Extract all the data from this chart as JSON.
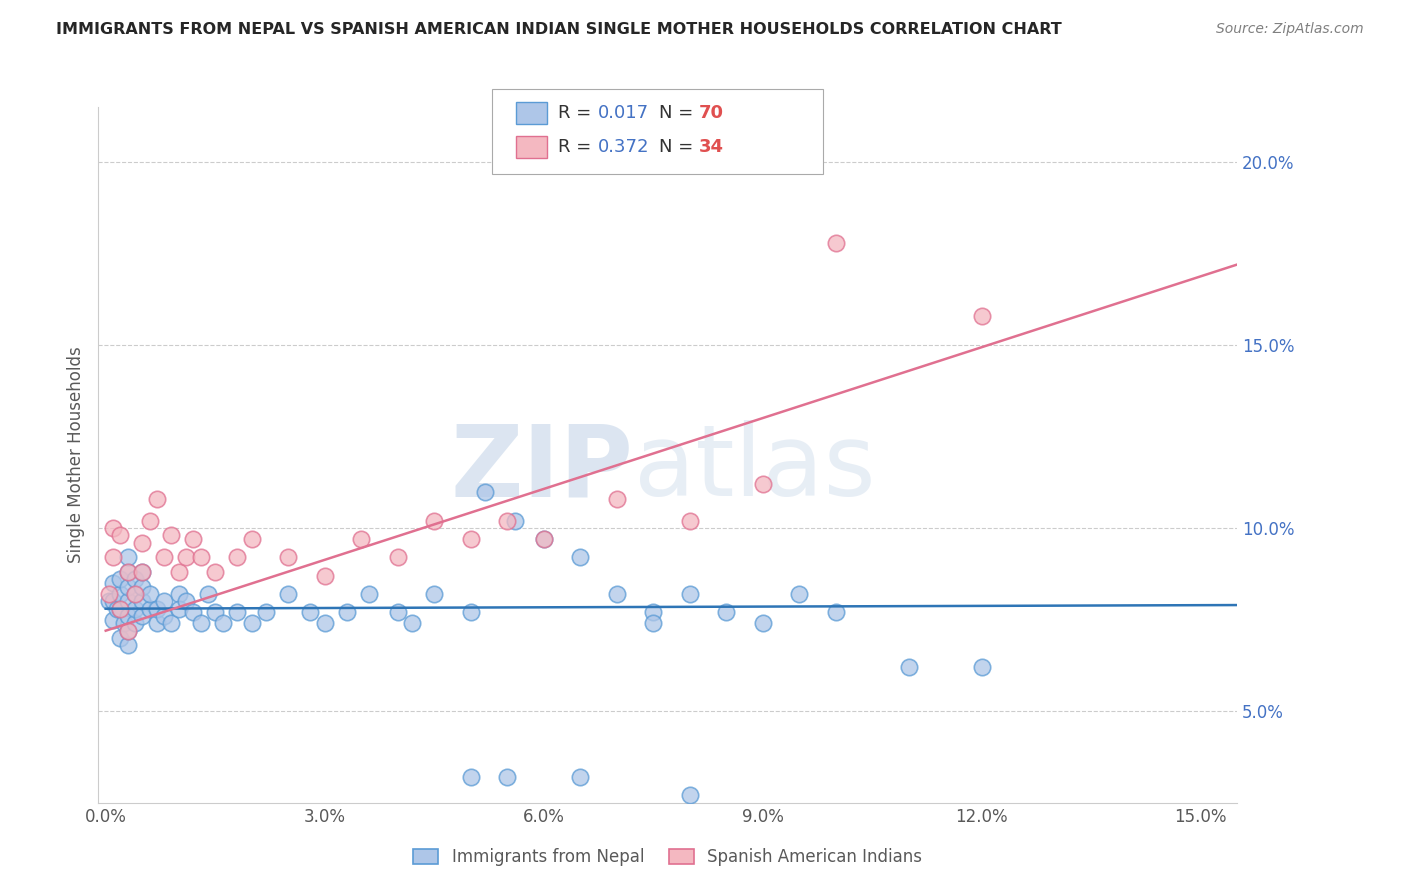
{
  "title": "IMMIGRANTS FROM NEPAL VS SPANISH AMERICAN INDIAN SINGLE MOTHER HOUSEHOLDS CORRELATION CHART",
  "source": "Source: ZipAtlas.com",
  "ylabel": "Single Mother Households",
  "xlim": [
    -0.001,
    0.155
  ],
  "ylim": [
    0.025,
    0.215
  ],
  "xticks": [
    0.0,
    0.03,
    0.06,
    0.09,
    0.12,
    0.15
  ],
  "yticks": [
    0.05,
    0.1,
    0.15,
    0.2
  ],
  "blue_color": "#aec6e8",
  "blue_edge_color": "#5b9bd5",
  "blue_line_color": "#2e75b6",
  "pink_color": "#f4b8c1",
  "pink_edge_color": "#e07090",
  "pink_line_color": "#e07090",
  "watermark_color": "#d0dce8",
  "yticklabel_color": "#4472c4",
  "xticklabel_color": "#595959",
  "title_color": "#262626",
  "source_color": "#808080",
  "legend_R_color": "#4472c4",
  "legend_N_color": "#e05050",
  "blue_scatter_x": [
    0.0005,
    0.001,
    0.001,
    0.001,
    0.0015,
    0.002,
    0.002,
    0.002,
    0.002,
    0.0025,
    0.003,
    0.003,
    0.003,
    0.003,
    0.003,
    0.003,
    0.003,
    0.004,
    0.004,
    0.004,
    0.004,
    0.005,
    0.005,
    0.005,
    0.005,
    0.006,
    0.006,
    0.007,
    0.007,
    0.008,
    0.008,
    0.009,
    0.01,
    0.01,
    0.011,
    0.012,
    0.013,
    0.014,
    0.015,
    0.016,
    0.018,
    0.02,
    0.022,
    0.025,
    0.028,
    0.03,
    0.033,
    0.036,
    0.04,
    0.042,
    0.045,
    0.05,
    0.052,
    0.056,
    0.06,
    0.065,
    0.07,
    0.075,
    0.075,
    0.08,
    0.085,
    0.09,
    0.095,
    0.1,
    0.11,
    0.12,
    0.05,
    0.055,
    0.065,
    0.08
  ],
  "blue_scatter_y": [
    0.08,
    0.075,
    0.08,
    0.085,
    0.078,
    0.07,
    0.078,
    0.082,
    0.086,
    0.074,
    0.068,
    0.072,
    0.076,
    0.08,
    0.084,
    0.088,
    0.092,
    0.074,
    0.078,
    0.082,
    0.086,
    0.076,
    0.08,
    0.084,
    0.088,
    0.078,
    0.082,
    0.074,
    0.078,
    0.076,
    0.08,
    0.074,
    0.082,
    0.078,
    0.08,
    0.077,
    0.074,
    0.082,
    0.077,
    0.074,
    0.077,
    0.074,
    0.077,
    0.082,
    0.077,
    0.074,
    0.077,
    0.082,
    0.077,
    0.074,
    0.082,
    0.077,
    0.11,
    0.102,
    0.097,
    0.092,
    0.082,
    0.077,
    0.074,
    0.082,
    0.077,
    0.074,
    0.082,
    0.077,
    0.062,
    0.062,
    0.032,
    0.032,
    0.032,
    0.027
  ],
  "pink_scatter_x": [
    0.0005,
    0.001,
    0.001,
    0.002,
    0.002,
    0.003,
    0.003,
    0.004,
    0.005,
    0.005,
    0.006,
    0.007,
    0.008,
    0.009,
    0.01,
    0.011,
    0.012,
    0.013,
    0.015,
    0.018,
    0.02,
    0.025,
    0.03,
    0.035,
    0.04,
    0.045,
    0.05,
    0.055,
    0.06,
    0.07,
    0.08,
    0.09,
    0.1,
    0.12
  ],
  "pink_scatter_y": [
    0.082,
    0.092,
    0.1,
    0.078,
    0.098,
    0.072,
    0.088,
    0.082,
    0.088,
    0.096,
    0.102,
    0.108,
    0.092,
    0.098,
    0.088,
    0.092,
    0.097,
    0.092,
    0.088,
    0.092,
    0.097,
    0.092,
    0.087,
    0.097,
    0.092,
    0.102,
    0.097,
    0.102,
    0.097,
    0.108,
    0.102,
    0.112,
    0.178,
    0.158
  ],
  "blue_line_x": [
    0.0,
    0.155
  ],
  "blue_line_y": [
    0.078,
    0.079
  ],
  "pink_line_x": [
    0.0,
    0.155
  ],
  "pink_line_y": [
    0.072,
    0.172
  ]
}
